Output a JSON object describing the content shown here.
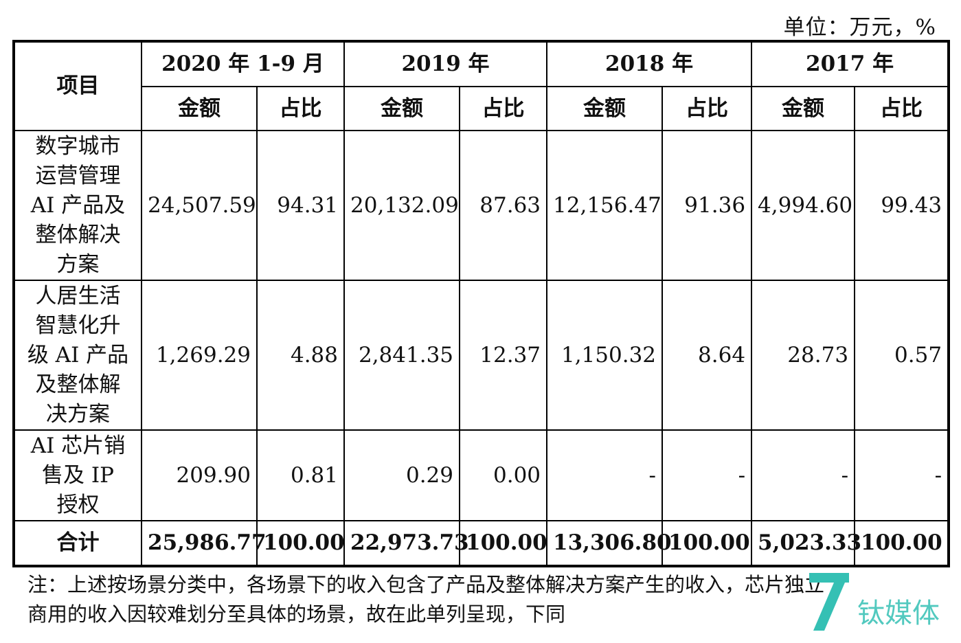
{
  "unit_label": "单位：万元，%",
  "header": {
    "item": "项目",
    "periods": [
      "2020 年 1-9 月",
      "2019 年",
      "2018 年",
      "2017 年"
    ],
    "amount": "金额",
    "ratio": "占比"
  },
  "rows": [
    {
      "item_lines": [
        "数字城市",
        "运营管理",
        "AI 产品及",
        "整体解决",
        "方案"
      ],
      "values": [
        "24,507.59",
        "94.31",
        "20,132.09",
        "87.63",
        "12,156.47",
        "91.36",
        "4,994.60",
        "99.43"
      ]
    },
    {
      "item_lines": [
        "人居生活",
        "智慧化升",
        "级 AI 产品",
        "及整体解",
        "决方案"
      ],
      "values": [
        "1,269.29",
        "4.88",
        "2,841.35",
        "12.37",
        "1,150.32",
        "8.64",
        "28.73",
        "0.57"
      ]
    },
    {
      "item_lines": [
        "AI 芯片销",
        "售及 IP",
        "授权"
      ],
      "values": [
        "209.90",
        "0.81",
        "0.29",
        "0.00",
        "-",
        "-",
        "-",
        "-"
      ]
    }
  ],
  "total": {
    "label": "合计",
    "values": [
      "25,986.77",
      "100.00",
      "22,973.73",
      "100.00",
      "13,306.80",
      "100.00",
      "5,023.33",
      "100.00"
    ]
  },
  "note_lines": [
    "注：上述按场景分类中，各场景下的收入包含了产品及整体解决方案产生的收入，芯片独立",
    "商用的收入因较难划分至具体的场景，故在此单列呈现，下同"
  ],
  "watermark_text": "钛媒体",
  "colors": {
    "watermark": "#35c0b4",
    "border": "#000000"
  }
}
